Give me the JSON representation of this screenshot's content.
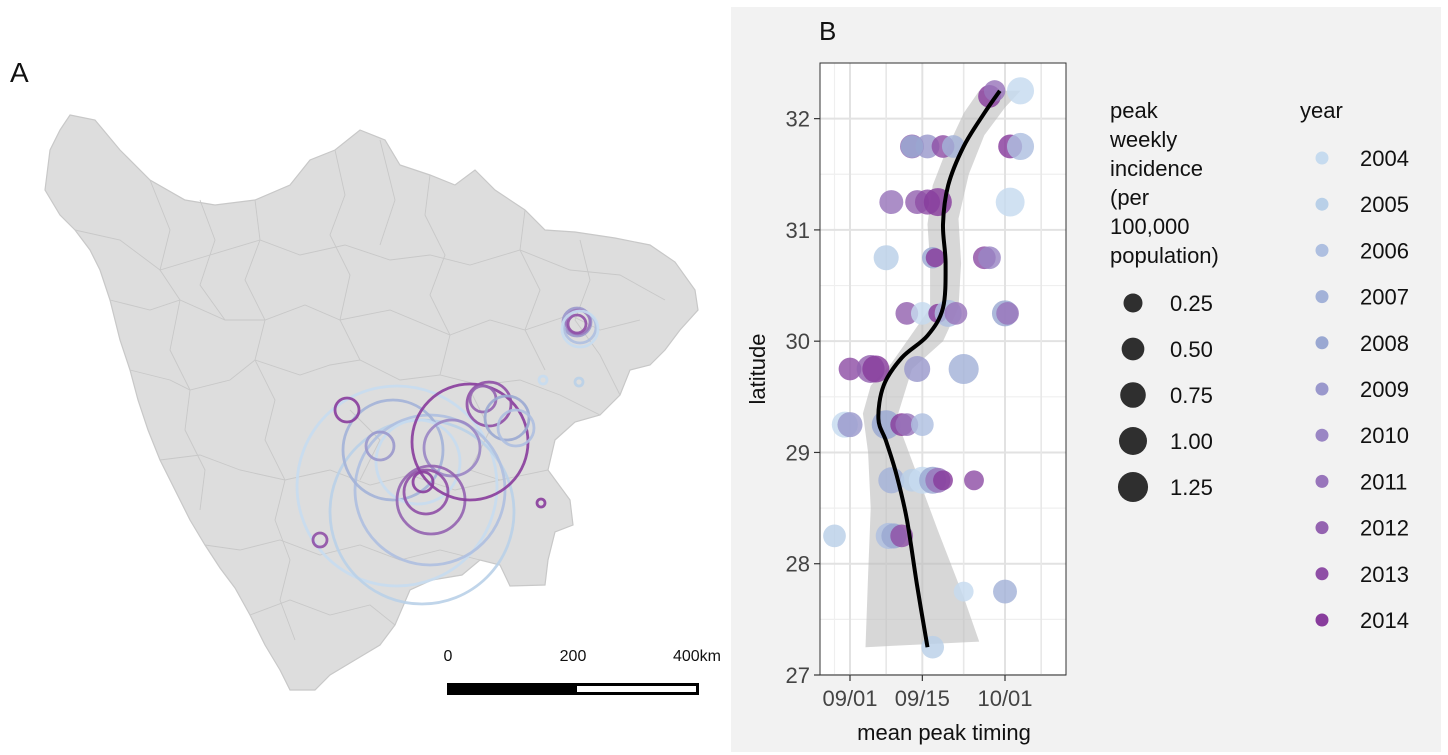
{
  "panels": {
    "a_label": "A",
    "b_label": "B"
  },
  "map": {
    "scale_bar": {
      "labels": [
        "0",
        "200",
        "400km"
      ]
    },
    "fill": "#dddddd",
    "border": "#c4c4c4"
  },
  "colors": {
    "2004": "#c6dbef",
    "2005": "#b9d0e8",
    "2006": "#aebfe0",
    "2007": "#a3b2d8",
    "2008": "#9aa8d2",
    "2009": "#9a98cc",
    "2010": "#9a86c4",
    "2011": "#9875bb",
    "2012": "#9463b0",
    "2013": "#8f4fa6",
    "2014": "#883c9c"
  },
  "chart_data": {
    "type": "scatter",
    "xlabel": "mean peak timing",
    "ylabel": "latitude",
    "xticks": [
      {
        "value": 0,
        "label": "09/01"
      },
      {
        "value": 14,
        "label": "09/15"
      },
      {
        "value": 30,
        "label": "10/01"
      }
    ],
    "yticks": [
      27,
      28,
      29,
      30,
      31,
      32
    ],
    "xlim": [
      -3,
      39
    ],
    "ylim": [
      27,
      32.5
    ],
    "grid": true,
    "size_legend": {
      "title": [
        "peak",
        "weekly",
        "incidence",
        "(per",
        "100,000",
        "population)"
      ],
      "entries": [
        {
          "label": "0.25",
          "value": 0.25
        },
        {
          "label": "0.50",
          "value": 0.5
        },
        {
          "label": "0.75",
          "value": 0.75
        },
        {
          "label": "1.00",
          "value": 1.0
        },
        {
          "label": "1.25",
          "value": 1.25
        }
      ]
    },
    "color_legend": {
      "title": "year",
      "entries": [
        "2004",
        "2005",
        "2006",
        "2007",
        "2008",
        "2009",
        "2010",
        "2011",
        "2012",
        "2013",
        "2014"
      ]
    },
    "trend": [
      {
        "x": 15,
        "y": 27.25
      },
      {
        "x": 13,
        "y": 27.8
      },
      {
        "x": 11,
        "y": 28.4
      },
      {
        "x": 9,
        "y": 28.8
      },
      {
        "x": 7,
        "y": 29.1
      },
      {
        "x": 5.5,
        "y": 29.3
      },
      {
        "x": 6.5,
        "y": 29.6
      },
      {
        "x": 10,
        "y": 29.85
      },
      {
        "x": 15,
        "y": 30.05
      },
      {
        "x": 18,
        "y": 30.3
      },
      {
        "x": 18.5,
        "y": 30.7
      },
      {
        "x": 18,
        "y": 31.05
      },
      {
        "x": 19,
        "y": 31.4
      },
      {
        "x": 22,
        "y": 31.75
      },
      {
        "x": 26,
        "y": 32.05
      },
      {
        "x": 29,
        "y": 32.25
      }
    ],
    "ribbon_upper": [
      {
        "x": 25,
        "y": 27.3
      },
      {
        "x": 22,
        "y": 27.7
      },
      {
        "x": 17,
        "y": 28.3
      },
      {
        "x": 13,
        "y": 28.8
      },
      {
        "x": 9,
        "y": 29.3
      },
      {
        "x": 12,
        "y": 29.75
      },
      {
        "x": 18,
        "y": 30.0
      },
      {
        "x": 21,
        "y": 30.3
      },
      {
        "x": 21.5,
        "y": 30.7
      },
      {
        "x": 21,
        "y": 31.1
      },
      {
        "x": 23,
        "y": 31.5
      },
      {
        "x": 26,
        "y": 31.85
      },
      {
        "x": 30,
        "y": 32.1
      },
      {
        "x": 33,
        "y": 32.25
      }
    ],
    "ribbon_lower": [
      {
        "x": 3,
        "y": 27.25
      },
      {
        "x": 3.5,
        "y": 27.9
      },
      {
        "x": 4,
        "y": 28.5
      },
      {
        "x": 3.5,
        "y": 29.0
      },
      {
        "x": 2.5,
        "y": 29.35
      },
      {
        "x": 4,
        "y": 29.6
      },
      {
        "x": 8,
        "y": 29.8
      },
      {
        "x": 12.5,
        "y": 30.1
      },
      {
        "x": 15.5,
        "y": 30.3
      },
      {
        "x": 15.5,
        "y": 30.7
      },
      {
        "x": 15,
        "y": 31.05
      },
      {
        "x": 16,
        "y": 31.4
      },
      {
        "x": 18.5,
        "y": 31.7
      },
      {
        "x": 22,
        "y": 32.05
      },
      {
        "x": 25,
        "y": 32.25
      }
    ],
    "points": [
      {
        "x": 33,
        "y": 32.25,
        "size": 0.9,
        "year": "2004"
      },
      {
        "x": 27,
        "y": 32.2,
        "size": 0.5,
        "year": "2014"
      },
      {
        "x": 28,
        "y": 32.25,
        "size": 0.4,
        "year": "2011"
      },
      {
        "x": 12,
        "y": 31.75,
        "size": 0.6,
        "year": "2012"
      },
      {
        "x": 15,
        "y": 31.75,
        "size": 0.6,
        "year": "2009"
      },
      {
        "x": 18,
        "y": 31.75,
        "size": 0.5,
        "year": "2013"
      },
      {
        "x": 20,
        "y": 31.75,
        "size": 0.5,
        "year": "2007"
      },
      {
        "x": 31,
        "y": 31.75,
        "size": 0.6,
        "year": "2014"
      },
      {
        "x": 33,
        "y": 31.75,
        "size": 0.9,
        "year": "2006"
      },
      {
        "x": 12,
        "y": 31.75,
        "size": 0.5,
        "year": "2008"
      },
      {
        "x": 8,
        "y": 31.25,
        "size": 0.6,
        "year": "2011"
      },
      {
        "x": 13,
        "y": 31.25,
        "size": 0.6,
        "year": "2012"
      },
      {
        "x": 15,
        "y": 31.25,
        "size": 0.7,
        "year": "2013"
      },
      {
        "x": 17,
        "y": 31.25,
        "size": 1.0,
        "year": "2014"
      },
      {
        "x": 31,
        "y": 31.25,
        "size": 1.1,
        "year": "2004"
      },
      {
        "x": 7,
        "y": 30.75,
        "size": 0.7,
        "year": "2005"
      },
      {
        "x": 16,
        "y": 30.75,
        "size": 0.4,
        "year": "2008"
      },
      {
        "x": 16.5,
        "y": 30.75,
        "size": 0.25,
        "year": "2014"
      },
      {
        "x": 26,
        "y": 30.75,
        "size": 0.5,
        "year": "2013"
      },
      {
        "x": 27,
        "y": 30.75,
        "size": 0.5,
        "year": "2010"
      },
      {
        "x": 11,
        "y": 30.25,
        "size": 0.5,
        "year": "2012"
      },
      {
        "x": 14,
        "y": 30.25,
        "size": 0.5,
        "year": "2004"
      },
      {
        "x": 17,
        "y": 30.25,
        "size": 0.25,
        "year": "2014"
      },
      {
        "x": 19,
        "y": 30.25,
        "size": 0.9,
        "year": "2006"
      },
      {
        "x": 20.5,
        "y": 30.25,
        "size": 0.5,
        "year": "2011"
      },
      {
        "x": 30,
        "y": 30.25,
        "size": 0.8,
        "year": "2008"
      },
      {
        "x": 30.5,
        "y": 30.25,
        "size": 0.5,
        "year": "2011"
      },
      {
        "x": 0,
        "y": 29.75,
        "size": 0.5,
        "year": "2013"
      },
      {
        "x": 4,
        "y": 29.75,
        "size": 1.0,
        "year": "2012"
      },
      {
        "x": 5,
        "y": 29.75,
        "size": 0.9,
        "year": "2014"
      },
      {
        "x": 13,
        "y": 29.75,
        "size": 0.8,
        "year": "2009"
      },
      {
        "x": 22,
        "y": 29.75,
        "size": 1.25,
        "year": "2007"
      },
      {
        "x": -1,
        "y": 29.25,
        "size": 0.8,
        "year": "2004"
      },
      {
        "x": 0,
        "y": 29.25,
        "size": 0.7,
        "year": "2009"
      },
      {
        "x": 7,
        "y": 29.25,
        "size": 1.1,
        "year": "2008"
      },
      {
        "x": 10,
        "y": 29.25,
        "size": 0.5,
        "year": "2014"
      },
      {
        "x": 11,
        "y": 29.25,
        "size": 0.5,
        "year": "2011"
      },
      {
        "x": 14,
        "y": 29.25,
        "size": 0.5,
        "year": "2006"
      },
      {
        "x": 8,
        "y": 28.75,
        "size": 0.8,
        "year": "2007"
      },
      {
        "x": 12,
        "y": 28.75,
        "size": 0.5,
        "year": "2005"
      },
      {
        "x": 14,
        "y": 28.75,
        "size": 0.9,
        "year": "2004"
      },
      {
        "x": 16,
        "y": 28.75,
        "size": 0.9,
        "year": "2008"
      },
      {
        "x": 17,
        "y": 28.75,
        "size": 0.7,
        "year": "2011"
      },
      {
        "x": 18,
        "y": 28.75,
        "size": 0.3,
        "year": "2014"
      },
      {
        "x": 24,
        "y": 28.75,
        "size": 0.3,
        "year": "2013"
      },
      {
        "x": -3,
        "y": 28.25,
        "size": 0.5,
        "year": "2005"
      },
      {
        "x": 7.5,
        "y": 28.25,
        "size": 0.8,
        "year": "2006"
      },
      {
        "x": 8.5,
        "y": 28.25,
        "size": 0.7,
        "year": "2008"
      },
      {
        "x": 10,
        "y": 28.25,
        "size": 0.5,
        "year": "2013"
      },
      {
        "x": 22,
        "y": 27.75,
        "size": 0.3,
        "year": "2004"
      },
      {
        "x": 30,
        "y": 27.75,
        "size": 0.6,
        "year": "2007"
      },
      {
        "x": 16,
        "y": 27.25,
        "size": 0.5,
        "year": "2005"
      }
    ]
  }
}
